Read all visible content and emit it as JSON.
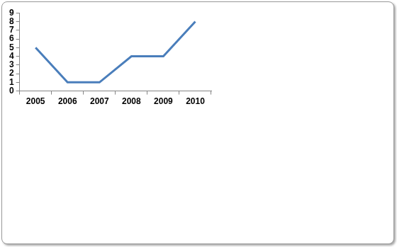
{
  "chart_data": {
    "type": "line",
    "categories": [
      "2005",
      "2006",
      "2007",
      "2008",
      "2009",
      "2010"
    ],
    "values": [
      5,
      1,
      1,
      4,
      4,
      8
    ],
    "color": "#4a7ebb",
    "ylim": [
      0,
      9
    ],
    "yticks": [
      0,
      1,
      2,
      3,
      4,
      5,
      6,
      7,
      8,
      9
    ],
    "grid": false
  }
}
